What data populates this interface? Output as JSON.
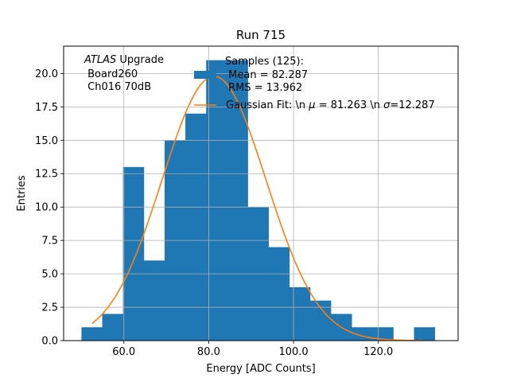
{
  "chart_data": {
    "type": "bar",
    "title": "Run 715",
    "xlabel": "Energy [ADC Counts]",
    "ylabel": "Entries",
    "xlim": [
      45.8,
      138.8
    ],
    "ylim": [
      0,
      22.05
    ],
    "grid": true,
    "x_ticks": [
      60,
      80,
      100,
      120
    ],
    "x_tick_labels": [
      "60.0",
      "80.0",
      "100.0",
      "120.0"
    ],
    "y_ticks": [
      0,
      2.5,
      5,
      7.5,
      10,
      12.5,
      15,
      17.5,
      20
    ],
    "y_tick_labels": [
      "0.0",
      "2.5",
      "5.0",
      "7.5",
      "10.0",
      "12.5",
      "15.0",
      "17.5",
      "20.0"
    ],
    "histogram": {
      "name": "Samples (125):",
      "color": "#1f77b4",
      "bin_edges": [
        50,
        54.9,
        59.8,
        64.7,
        69.6,
        74.5,
        79.4,
        84.3,
        89.2,
        94.1,
        99.0,
        103.9,
        108.8,
        113.7,
        118.6,
        123.5,
        128.4,
        133.3
      ],
      "counts": [
        1,
        2,
        13,
        6,
        15,
        17,
        21,
        21,
        10,
        7,
        4,
        3,
        2,
        1,
        1,
        0,
        1
      ]
    },
    "fit": {
      "name": "Gaussian Fit",
      "color": "#ff7f0e",
      "x_start": 52.5,
      "x_end": 130.5,
      "mu": 81.263,
      "sigma": 12.287,
      "amplitude": 19.8
    },
    "annotations": {
      "atlas_italic": "ATLAS",
      "atlas_rest": " Upgrade",
      "board": " Board260",
      "channel": " Ch016 70dB"
    },
    "legend": {
      "placement": "upper-right",
      "hist_line1": "Samples (125):",
      "hist_line2": " Mean = 82.287",
      "hist_line3": " RMS = 13.962",
      "fit_prefix": "Gaussian Fit: \\n ",
      "fit_mu_symbol": "μ",
      "fit_mid": " = 81.263 \\n ",
      "fit_sigma_symbol": "σ",
      "fit_suffix": "=12.287"
    }
  }
}
